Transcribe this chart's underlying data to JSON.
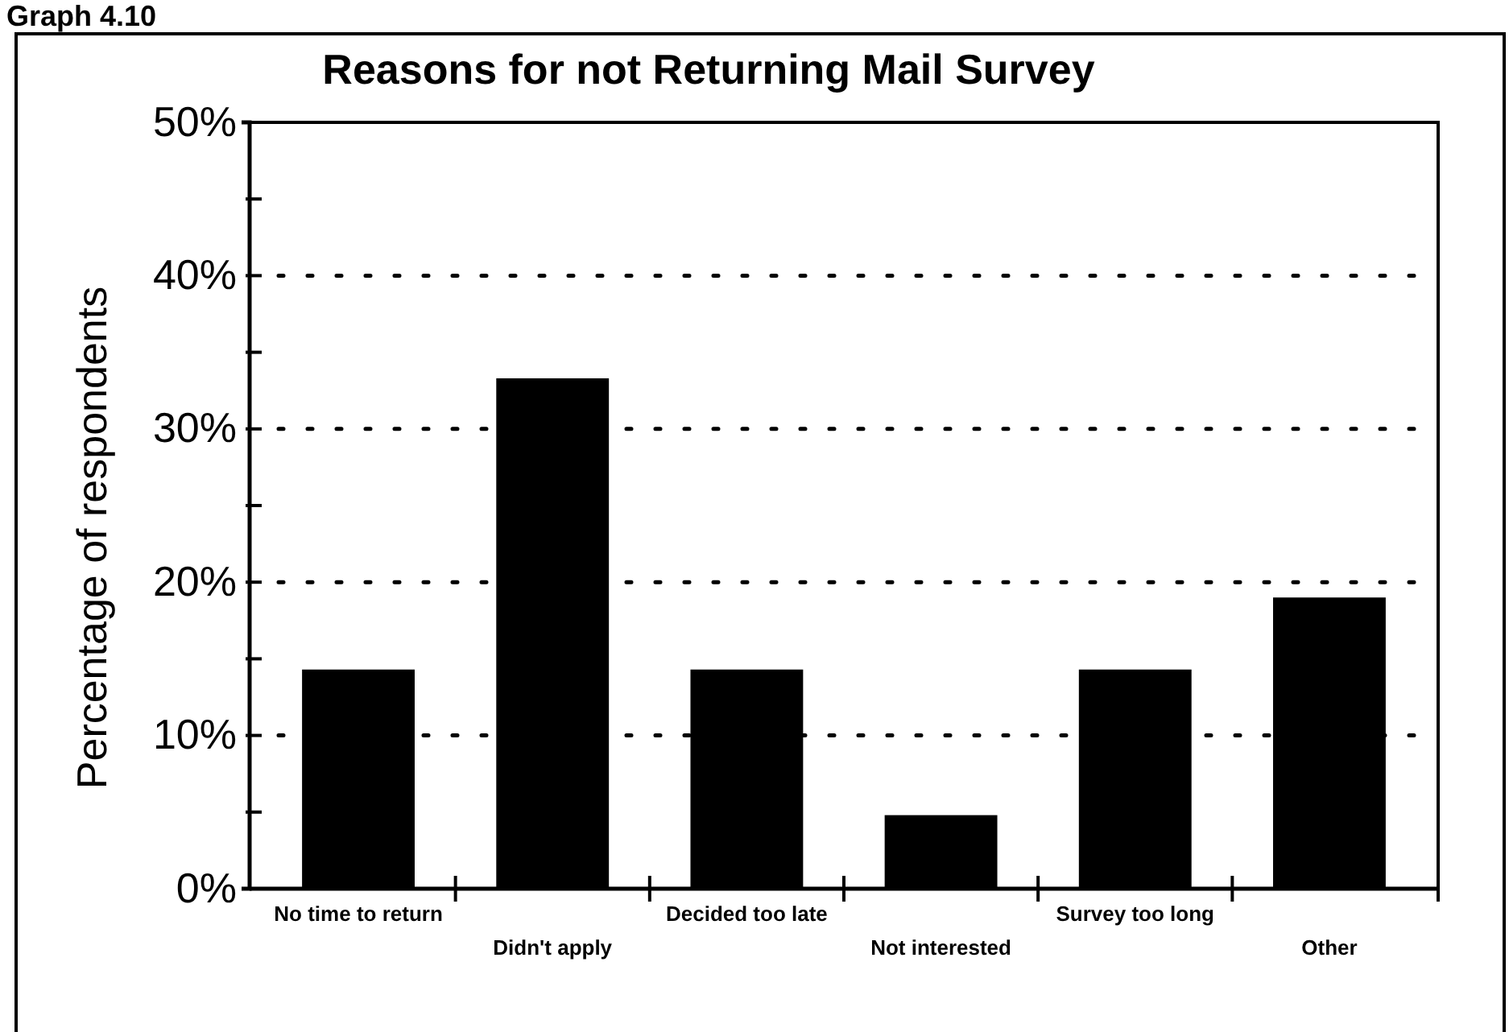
{
  "chart_data": {
    "type": "bar",
    "title": "Reasons for not Returning Mail Survey",
    "ylabel": "Percentage of respondents",
    "annotations": [
      "Graph 4.10"
    ],
    "categories": [
      "No time to return",
      "Didn't apply",
      "Decided too late",
      "Not interested",
      "Survey too long",
      "Other"
    ],
    "values": [
      14.3,
      33.3,
      14.3,
      4.8,
      14.3,
      19.0
    ],
    "color": "#000000",
    "ylim": [
      0,
      50
    ],
    "yticks": [
      {
        "value": 0,
        "label": "0%"
      },
      {
        "value": 5,
        "label": null
      },
      {
        "value": 10,
        "label": "10%"
      },
      {
        "value": 15,
        "label": null
      },
      {
        "value": 20,
        "label": "20%"
      },
      {
        "value": 25,
        "label": null
      },
      {
        "value": 30,
        "label": "30%"
      },
      {
        "value": 35,
        "label": null
      },
      {
        "value": 40,
        "label": "40%"
      },
      {
        "value": 45,
        "label": null
      },
      {
        "value": 50,
        "label": "50%"
      }
    ],
    "grid": "y",
    "line_style": "dotted"
  }
}
